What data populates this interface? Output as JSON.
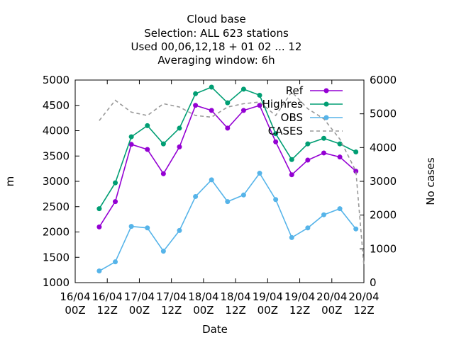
{
  "chart_data": {
    "type": "line",
    "title_lines": [
      "Cloud base",
      "Selection: ALL    623 stations",
      "Used  00,06,12,18  + 01 02 ... 12",
      "Averaging window:  6h"
    ],
    "xlabel": "Date",
    "ylabel": "m",
    "y2label": "No cases",
    "ylim": [
      1000,
      5000
    ],
    "y2lim": [
      0,
      6000
    ],
    "yticks": [
      "1000",
      "1500",
      "2000",
      "2500",
      "3000",
      "3500",
      "4000",
      "4500",
      "5000"
    ],
    "y2ticks": [
      "0",
      "1000",
      "2000",
      "3000",
      "4000",
      "5000",
      "6000"
    ],
    "xticks": [
      {
        "line1": "16/04",
        "line2": "00Z"
      },
      {
        "line1": "16/04",
        "line2": "12Z"
      },
      {
        "line1": "17/04",
        "line2": "00Z"
      },
      {
        "line1": "17/04",
        "line2": "12Z"
      },
      {
        "line1": "18/04",
        "line2": "00Z"
      },
      {
        "line1": "18/04",
        "line2": "12Z"
      },
      {
        "line1": "19/04",
        "line2": "00Z"
      },
      {
        "line1": "19/04",
        "line2": "12Z"
      },
      {
        "line1": "20/04",
        "line2": "00Z"
      },
      {
        "line1": "20/04",
        "line2": "12Z"
      }
    ],
    "x_hours": [
      9,
      15,
      21,
      27,
      33,
      39,
      45,
      51,
      57,
      63,
      69,
      75,
      81,
      87,
      93,
      99,
      105,
      108
    ],
    "legend_position": "top-right",
    "grid": false,
    "series": [
      {
        "name": "Ref",
        "color": "#9400d3",
        "marker": "circle",
        "axis": "y1",
        "values": [
          2100,
          2600,
          3730,
          3630,
          3150,
          3680,
          4500,
          4400,
          4050,
          4400,
          4500,
          3780,
          3130,
          3420,
          3560,
          3480,
          3200
        ]
      },
      {
        "name": "Highres",
        "color": "#009e73",
        "marker": "circle",
        "axis": "y1",
        "values": [
          2460,
          2970,
          3880,
          4100,
          3740,
          4050,
          4730,
          4860,
          4550,
          4820,
          4700,
          3940,
          3430,
          3740,
          3850,
          3740,
          3580
        ]
      },
      {
        "name": "OBS",
        "color": "#56b4e9",
        "marker": "circle",
        "axis": "y1",
        "values": [
          1230,
          1410,
          2110,
          2080,
          1620,
          2030,
          2700,
          3030,
          2600,
          2730,
          3160,
          2640,
          1890,
          2080,
          2340,
          2460,
          2060
        ]
      },
      {
        "name": "CASES",
        "color": "#999999",
        "dashed": true,
        "axis": "y2",
        "values": [
          4800,
          5400,
          5050,
          4950,
          5300,
          5200,
          4950,
          4900,
          5200,
          5300,
          5350,
          4950,
          5650,
          5150,
          4850,
          4250,
          3300,
          500
        ]
      }
    ]
  }
}
